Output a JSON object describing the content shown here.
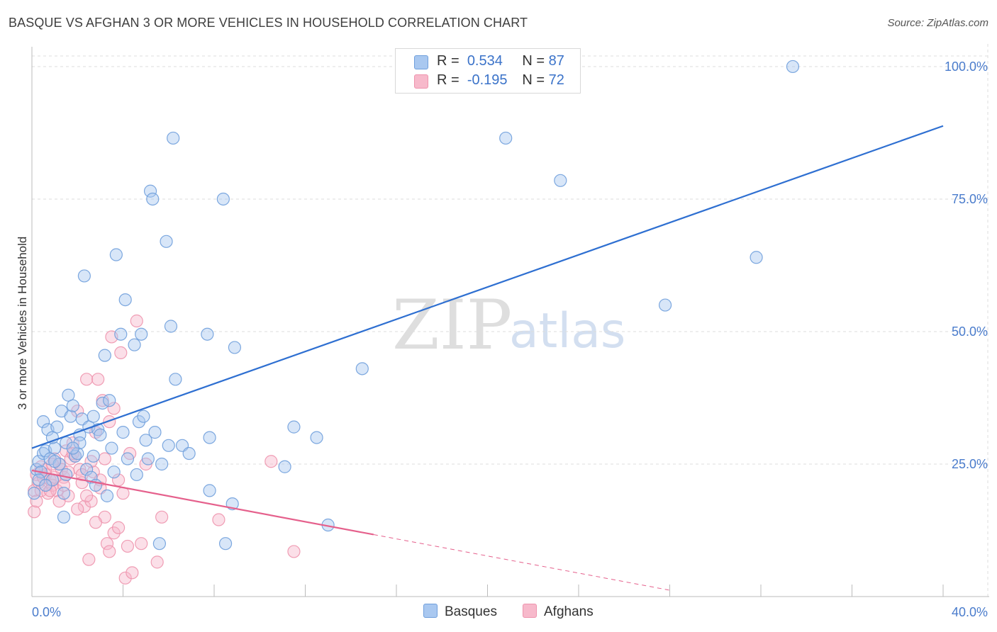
{
  "title": "BASQUE VS AFGHAN 3 OR MORE VEHICLES IN HOUSEHOLD CORRELATION CHART",
  "source": "Source: ZipAtlas.com",
  "watermark": {
    "zip": "ZIP",
    "atlas": "atlas"
  },
  "legend": {
    "rows": [
      {
        "r_label": "R =",
        "r_value": "0.534",
        "n_label": "N =",
        "n_value": "87"
      },
      {
        "r_label": "R =",
        "r_value": "-0.195",
        "n_label": "N =",
        "n_value": "72"
      }
    ]
  },
  "bottom_legend": {
    "basques": "Basques",
    "afghans": "Afghans"
  },
  "colors": {
    "basque_fill": "#a9c8f0",
    "basque_stroke": "#6f9fdc",
    "basque_line": "#2e6fd1",
    "afghan_fill": "#f7b9cb",
    "afghan_stroke": "#ee93ad",
    "afghan_line": "#e5608c",
    "tick_text": "#4a7ccc",
    "grid": "#dddddd"
  },
  "chart_data": {
    "type": "scatter",
    "title": "BASQUE VS AFGHAN 3 OR MORE VEHICLES IN HOUSEHOLD CORRELATION CHART",
    "xlabel": "",
    "ylabel": "3 or more Vehicles in Household",
    "xlim": [
      0,
      40
    ],
    "ylim": [
      0,
      102
    ],
    "x_tick_labels": [
      "0.0%",
      "40.0%"
    ],
    "y_ticks": [
      25,
      50,
      75,
      100
    ],
    "y_tick_labels": [
      "25.0%",
      "50.0%",
      "75.0%",
      "100.0%"
    ],
    "legend_position": "top-center",
    "series": [
      {
        "name": "Basques",
        "r": 0.534,
        "n": 87,
        "trend": {
          "x": [
            0,
            40
          ],
          "y": [
            28.0,
            88.8
          ]
        },
        "points": [
          [
            0.1,
            19.5
          ],
          [
            0.2,
            24.0
          ],
          [
            0.3,
            25.5
          ],
          [
            0.4,
            23.5
          ],
          [
            0.5,
            27.0
          ],
          [
            0.5,
            33.0
          ],
          [
            0.6,
            27.5
          ],
          [
            0.7,
            31.5
          ],
          [
            0.8,
            26.0
          ],
          [
            0.9,
            22.0
          ],
          [
            1.0,
            28.0
          ],
          [
            1.1,
            32.0
          ],
          [
            1.2,
            25.0
          ],
          [
            1.3,
            35.0
          ],
          [
            1.4,
            19.5
          ],
          [
            1.4,
            15.0
          ],
          [
            1.5,
            29.0
          ],
          [
            1.6,
            38.0
          ],
          [
            1.7,
            34.0
          ],
          [
            1.8,
            36.0
          ],
          [
            1.9,
            26.5
          ],
          [
            2.0,
            27.0
          ],
          [
            2.1,
            30.5
          ],
          [
            2.2,
            33.5
          ],
          [
            2.3,
            60.5
          ],
          [
            2.4,
            24.0
          ],
          [
            2.5,
            32.0
          ],
          [
            2.6,
            22.5
          ],
          [
            2.7,
            34.0
          ],
          [
            2.7,
            26.5
          ],
          [
            2.8,
            21.0
          ],
          [
            2.9,
            31.5
          ],
          [
            3.0,
            30.5
          ],
          [
            3.1,
            36.5
          ],
          [
            3.2,
            45.5
          ],
          [
            3.3,
            19.0
          ],
          [
            3.4,
            37.0
          ],
          [
            3.6,
            23.5
          ],
          [
            3.7,
            64.5
          ],
          [
            3.9,
            49.5
          ],
          [
            4.0,
            31.0
          ],
          [
            4.1,
            56.0
          ],
          [
            4.2,
            26.0
          ],
          [
            4.5,
            47.5
          ],
          [
            4.6,
            23.0
          ],
          [
            4.7,
            33.0
          ],
          [
            4.8,
            49.5
          ],
          [
            4.9,
            34.0
          ],
          [
            5.0,
            29.5
          ],
          [
            5.1,
            26.0
          ],
          [
            5.2,
            76.5
          ],
          [
            5.3,
            75.0
          ],
          [
            5.4,
            31.0
          ],
          [
            5.6,
            10.0
          ],
          [
            5.7,
            25.0
          ],
          [
            5.9,
            67.0
          ],
          [
            6.0,
            28.5
          ],
          [
            6.1,
            51.0
          ],
          [
            6.2,
            86.5
          ],
          [
            6.3,
            41.0
          ],
          [
            6.6,
            28.5
          ],
          [
            6.9,
            27.0
          ],
          [
            7.7,
            49.5
          ],
          [
            7.8,
            20.0
          ],
          [
            7.8,
            30.0
          ],
          [
            8.4,
            75.0
          ],
          [
            8.5,
            10.0
          ],
          [
            8.8,
            17.5
          ],
          [
            8.9,
            47.0
          ],
          [
            11.1,
            24.5
          ],
          [
            11.5,
            32.0
          ],
          [
            12.5,
            30.0
          ],
          [
            13.0,
            13.5
          ],
          [
            14.5,
            43.0
          ],
          [
            20.8,
            86.5
          ],
          [
            23.2,
            78.5
          ],
          [
            27.8,
            55.0
          ],
          [
            31.8,
            64.0
          ],
          [
            33.4,
            100.0
          ],
          [
            0.3,
            22.0
          ],
          [
            0.6,
            21.0
          ],
          [
            1.0,
            25.5
          ],
          [
            1.5,
            23.0
          ],
          [
            2.1,
            29.0
          ],
          [
            3.5,
            28.0
          ],
          [
            0.9,
            30.0
          ],
          [
            1.8,
            28.0
          ]
        ]
      },
      {
        "name": "Afghans",
        "r": -0.195,
        "n": 72,
        "trend": {
          "x": [
            0,
            15
          ],
          "y": [
            23.8,
            11.7
          ]
        },
        "trend_dashed": {
          "x": [
            15,
            28
          ],
          "y": [
            11.7,
            1.2
          ]
        },
        "points": [
          [
            0.1,
            16.0
          ],
          [
            0.1,
            20.0
          ],
          [
            0.2,
            23.0
          ],
          [
            0.3,
            21.5
          ],
          [
            0.4,
            20.0
          ],
          [
            0.5,
            22.5
          ],
          [
            0.6,
            24.0
          ],
          [
            0.7,
            19.5
          ],
          [
            0.8,
            22.0
          ],
          [
            0.9,
            21.0
          ],
          [
            1.0,
            26.0
          ],
          [
            1.1,
            20.0
          ],
          [
            1.2,
            25.0
          ],
          [
            1.3,
            24.0
          ],
          [
            1.4,
            22.5
          ],
          [
            1.5,
            27.5
          ],
          [
            1.6,
            19.0
          ],
          [
            1.7,
            26.0
          ],
          [
            1.8,
            29.0
          ],
          [
            1.9,
            26.5
          ],
          [
            2.0,
            35.0
          ],
          [
            2.1,
            24.0
          ],
          [
            2.2,
            23.0
          ],
          [
            2.3,
            17.0
          ],
          [
            2.4,
            41.0
          ],
          [
            2.5,
            7.0
          ],
          [
            2.6,
            18.0
          ],
          [
            2.7,
            23.5
          ],
          [
            2.8,
            31.0
          ],
          [
            2.9,
            41.0
          ],
          [
            3.0,
            22.0
          ],
          [
            3.1,
            37.0
          ],
          [
            3.2,
            15.0
          ],
          [
            3.3,
            10.0
          ],
          [
            3.4,
            8.5
          ],
          [
            3.5,
            49.0
          ],
          [
            3.6,
            12.0
          ],
          [
            3.8,
            22.0
          ],
          [
            3.9,
            46.0
          ],
          [
            4.0,
            19.5
          ],
          [
            4.1,
            3.5
          ],
          [
            4.2,
            9.5
          ],
          [
            4.3,
            27.0
          ],
          [
            4.4,
            4.5
          ],
          [
            4.6,
            52.0
          ],
          [
            4.8,
            10.0
          ],
          [
            5.0,
            25.0
          ],
          [
            5.5,
            6.5
          ],
          [
            5.7,
            15.0
          ],
          [
            8.2,
            14.5
          ],
          [
            10.5,
            25.5
          ],
          [
            11.5,
            8.5
          ],
          [
            0.2,
            18.0
          ],
          [
            0.4,
            24.5
          ],
          [
            0.6,
            23.0
          ],
          [
            0.8,
            20.0
          ],
          [
            1.0,
            22.5
          ],
          [
            1.2,
            18.0
          ],
          [
            1.4,
            21.0
          ],
          [
            1.6,
            23.5
          ],
          [
            1.8,
            27.0
          ],
          [
            2.0,
            16.5
          ],
          [
            2.2,
            21.5
          ],
          [
            2.4,
            19.0
          ],
          [
            2.6,
            25.5
          ],
          [
            2.8,
            14.0
          ],
          [
            3.0,
            20.5
          ],
          [
            3.2,
            26.0
          ],
          [
            3.4,
            33.0
          ],
          [
            3.6,
            35.5
          ],
          [
            3.8,
            13.0
          ],
          [
            0.9,
            25.0
          ]
        ]
      }
    ]
  }
}
